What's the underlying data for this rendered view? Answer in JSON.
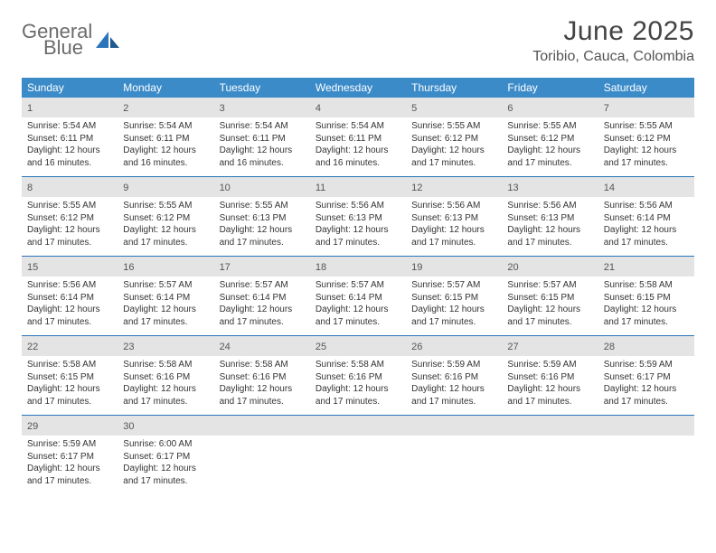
{
  "brand": {
    "name1": "General",
    "name2": "Blue"
  },
  "title": "June 2025",
  "location": "Toribio, Cauca, Colombia",
  "colors": {
    "header_bg": "#3b8bc9",
    "rule": "#2a74bb",
    "daynum_bg": "#e4e4e4",
    "text": "#333333",
    "logo_gray": "#6b6b6b",
    "logo_blue": "#2a74bb"
  },
  "weekdays": [
    "Sunday",
    "Monday",
    "Tuesday",
    "Wednesday",
    "Thursday",
    "Friday",
    "Saturday"
  ],
  "weeks": [
    [
      {
        "n": "1",
        "sr": "5:54 AM",
        "ss": "6:11 PM",
        "dl": "12 hours and 16 minutes."
      },
      {
        "n": "2",
        "sr": "5:54 AM",
        "ss": "6:11 PM",
        "dl": "12 hours and 16 minutes."
      },
      {
        "n": "3",
        "sr": "5:54 AM",
        "ss": "6:11 PM",
        "dl": "12 hours and 16 minutes."
      },
      {
        "n": "4",
        "sr": "5:54 AM",
        "ss": "6:11 PM",
        "dl": "12 hours and 16 minutes."
      },
      {
        "n": "5",
        "sr": "5:55 AM",
        "ss": "6:12 PM",
        "dl": "12 hours and 17 minutes."
      },
      {
        "n": "6",
        "sr": "5:55 AM",
        "ss": "6:12 PM",
        "dl": "12 hours and 17 minutes."
      },
      {
        "n": "7",
        "sr": "5:55 AM",
        "ss": "6:12 PM",
        "dl": "12 hours and 17 minutes."
      }
    ],
    [
      {
        "n": "8",
        "sr": "5:55 AM",
        "ss": "6:12 PM",
        "dl": "12 hours and 17 minutes."
      },
      {
        "n": "9",
        "sr": "5:55 AM",
        "ss": "6:12 PM",
        "dl": "12 hours and 17 minutes."
      },
      {
        "n": "10",
        "sr": "5:55 AM",
        "ss": "6:13 PM",
        "dl": "12 hours and 17 minutes."
      },
      {
        "n": "11",
        "sr": "5:56 AM",
        "ss": "6:13 PM",
        "dl": "12 hours and 17 minutes."
      },
      {
        "n": "12",
        "sr": "5:56 AM",
        "ss": "6:13 PM",
        "dl": "12 hours and 17 minutes."
      },
      {
        "n": "13",
        "sr": "5:56 AM",
        "ss": "6:13 PM",
        "dl": "12 hours and 17 minutes."
      },
      {
        "n": "14",
        "sr": "5:56 AM",
        "ss": "6:14 PM",
        "dl": "12 hours and 17 minutes."
      }
    ],
    [
      {
        "n": "15",
        "sr": "5:56 AM",
        "ss": "6:14 PM",
        "dl": "12 hours and 17 minutes."
      },
      {
        "n": "16",
        "sr": "5:57 AM",
        "ss": "6:14 PM",
        "dl": "12 hours and 17 minutes."
      },
      {
        "n": "17",
        "sr": "5:57 AM",
        "ss": "6:14 PM",
        "dl": "12 hours and 17 minutes."
      },
      {
        "n": "18",
        "sr": "5:57 AM",
        "ss": "6:14 PM",
        "dl": "12 hours and 17 minutes."
      },
      {
        "n": "19",
        "sr": "5:57 AM",
        "ss": "6:15 PM",
        "dl": "12 hours and 17 minutes."
      },
      {
        "n": "20",
        "sr": "5:57 AM",
        "ss": "6:15 PM",
        "dl": "12 hours and 17 minutes."
      },
      {
        "n": "21",
        "sr": "5:58 AM",
        "ss": "6:15 PM",
        "dl": "12 hours and 17 minutes."
      }
    ],
    [
      {
        "n": "22",
        "sr": "5:58 AM",
        "ss": "6:15 PM",
        "dl": "12 hours and 17 minutes."
      },
      {
        "n": "23",
        "sr": "5:58 AM",
        "ss": "6:16 PM",
        "dl": "12 hours and 17 minutes."
      },
      {
        "n": "24",
        "sr": "5:58 AM",
        "ss": "6:16 PM",
        "dl": "12 hours and 17 minutes."
      },
      {
        "n": "25",
        "sr": "5:58 AM",
        "ss": "6:16 PM",
        "dl": "12 hours and 17 minutes."
      },
      {
        "n": "26",
        "sr": "5:59 AM",
        "ss": "6:16 PM",
        "dl": "12 hours and 17 minutes."
      },
      {
        "n": "27",
        "sr": "5:59 AM",
        "ss": "6:16 PM",
        "dl": "12 hours and 17 minutes."
      },
      {
        "n": "28",
        "sr": "5:59 AM",
        "ss": "6:17 PM",
        "dl": "12 hours and 17 minutes."
      }
    ],
    [
      {
        "n": "29",
        "sr": "5:59 AM",
        "ss": "6:17 PM",
        "dl": "12 hours and 17 minutes."
      },
      {
        "n": "30",
        "sr": "6:00 AM",
        "ss": "6:17 PM",
        "dl": "12 hours and 17 minutes."
      },
      null,
      null,
      null,
      null,
      null
    ]
  ],
  "labels": {
    "sunrise": "Sunrise:",
    "sunset": "Sunset:",
    "daylight": "Daylight:"
  }
}
